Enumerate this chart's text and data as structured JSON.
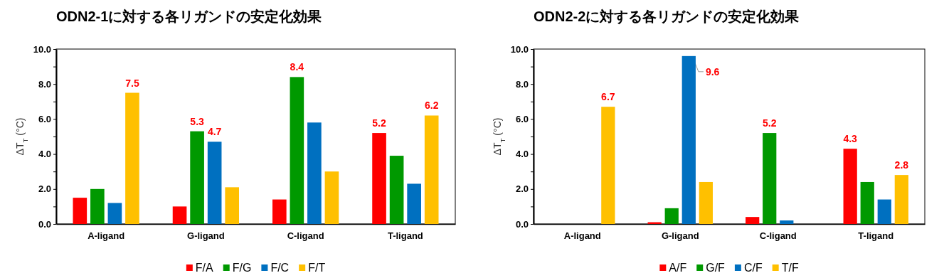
{
  "chart_data": [
    {
      "type": "bar",
      "title": "ODN2-1に対する各リガンドの安定化効果",
      "ylabel": "ΔT$_{T}$ (°C)",
      "categories": [
        "A-ligand",
        "G-ligand",
        "C-ligand",
        "T-ligand"
      ],
      "ylim": [
        0,
        10
      ],
      "yticks": [
        {
          "value": 0,
          "label": "0.0"
        },
        {
          "value": 1,
          "label": null
        },
        {
          "value": 2,
          "label": "2.0"
        },
        {
          "value": 3,
          "label": null
        },
        {
          "value": 4,
          "label": "4.0"
        },
        {
          "value": 5,
          "label": null
        },
        {
          "value": 6,
          "label": "6.0"
        },
        {
          "value": 7,
          "label": null
        },
        {
          "value": 8,
          "label": "8.0"
        },
        {
          "value": 9,
          "label": null
        },
        {
          "value": 10,
          "label": "10.0"
        }
      ],
      "legend": "bottom",
      "series": [
        {
          "name": "F/A",
          "color": "#ff0000",
          "values": [
            1.5,
            1.0,
            1.4,
            5.2
          ],
          "value_labels": [
            null,
            null,
            null,
            "5.2"
          ]
        },
        {
          "name": "F/G",
          "color": "#009900",
          "values": [
            2.0,
            5.3,
            8.4,
            3.9
          ],
          "value_labels": [
            null,
            "5.3",
            "8.4",
            null
          ]
        },
        {
          "name": "F/C",
          "color": "#0070c0",
          "values": [
            1.2,
            4.7,
            5.8,
            2.3
          ],
          "value_labels": [
            null,
            "4.7",
            null,
            null
          ]
        },
        {
          "name": "F/T",
          "color": "#ffc000",
          "values": [
            7.5,
            2.1,
            3.0,
            6.2
          ],
          "value_labels": [
            "7.5",
            null,
            null,
            "6.2"
          ]
        }
      ]
    },
    {
      "type": "bar",
      "title": "ODN2-2に対する各リガンドの安定化効果",
      "ylabel": "ΔT$_{T}$ (°C)",
      "categories": [
        "A-ligand",
        "G-ligand",
        "C-ligand",
        "T-ligand"
      ],
      "ylim": [
        0,
        10
      ],
      "yticks": [
        {
          "value": 0,
          "label": "0.0"
        },
        {
          "value": 1,
          "label": null
        },
        {
          "value": 2,
          "label": "2.0"
        },
        {
          "value": 3,
          "label": null
        },
        {
          "value": 4,
          "label": "4.0"
        },
        {
          "value": 5,
          "label": null
        },
        {
          "value": 6,
          "label": "6.0"
        },
        {
          "value": 7,
          "label": null
        },
        {
          "value": 8,
          "label": "8.0"
        },
        {
          "value": 9,
          "label": null
        },
        {
          "value": 10,
          "label": "10.0"
        }
      ],
      "legend": "bottom",
      "series": [
        {
          "name": "A/F",
          "color": "#ff0000",
          "values": [
            null,
            0.1,
            0.4,
            4.3
          ],
          "value_labels": [
            null,
            null,
            null,
            "4.3"
          ]
        },
        {
          "name": "G/F",
          "color": "#009900",
          "values": [
            null,
            0.9,
            5.2,
            2.4
          ],
          "value_labels": [
            null,
            null,
            "5.2",
            null
          ]
        },
        {
          "name": "C/F",
          "color": "#0070c0",
          "values": [
            null,
            9.6,
            0.2,
            1.4
          ],
          "value_labels": [
            null,
            "9.6",
            null,
            null
          ]
        },
        {
          "name": "T/F",
          "color": "#ffc000",
          "values": [
            6.7,
            2.4,
            null,
            2.8
          ],
          "value_labels": [
            "6.7",
            null,
            null,
            "2.8"
          ]
        }
      ]
    }
  ]
}
